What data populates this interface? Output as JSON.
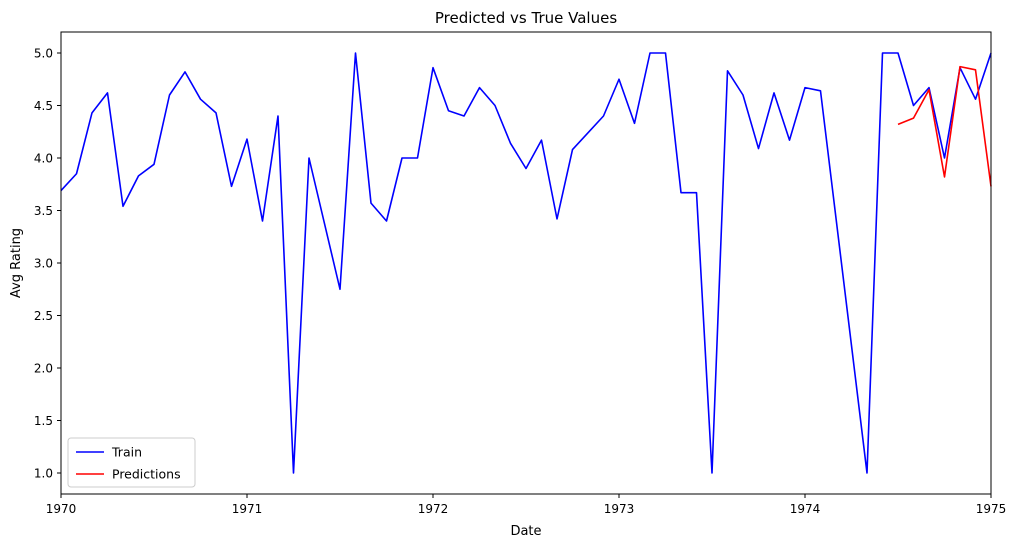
{
  "chart_data": {
    "type": "line",
    "title": "Predicted vs True Values",
    "xlabel": "Date",
    "ylabel": "Avg Rating",
    "xlim": [
      "1970-01",
      "1975-01"
    ],
    "ylim": [
      0.8,
      5.2
    ],
    "grid": false,
    "legend_position": "lower-left",
    "x_ticks": [
      "1970",
      "1971",
      "1972",
      "1973",
      "1974",
      "1975"
    ],
    "y_ticks": [
      "1.0",
      "1.5",
      "2.0",
      "2.5",
      "3.0",
      "3.5",
      "4.0",
      "4.5",
      "5.0"
    ],
    "series": [
      {
        "name": "Train",
        "color": "#0000ff",
        "x": [
          "1970-01",
          "1970-02",
          "1970-03",
          "1970-04",
          "1970-05",
          "1970-06",
          "1970-07",
          "1970-08",
          "1970-09",
          "1970-10",
          "1970-11",
          "1970-12",
          "1971-01",
          "1971-02",
          "1971-03",
          "1971-04",
          "1971-05",
          "1971-07",
          "1971-08",
          "1971-09",
          "1971-10",
          "1971-11",
          "1971-12",
          "1972-01",
          "1972-02",
          "1972-03",
          "1972-04",
          "1972-05",
          "1972-06",
          "1972-07",
          "1972-08",
          "1972-09",
          "1972-10",
          "1972-12",
          "1973-01",
          "1973-02",
          "1973-03",
          "1973-04",
          "1973-05",
          "1973-06",
          "1973-07",
          "1973-08",
          "1973-09",
          "1973-10",
          "1973-11",
          "1973-12",
          "1974-01",
          "1974-02",
          "1974-05",
          "1974-06",
          "1974-07",
          "1974-08",
          "1974-09",
          "1974-10",
          "1974-11",
          "1974-12",
          "1975-01"
        ],
        "values": [
          3.69,
          3.85,
          4.43,
          4.62,
          3.54,
          3.83,
          3.94,
          4.6,
          4.82,
          4.56,
          4.43,
          3.73,
          4.18,
          3.4,
          4.4,
          1.0,
          4.0,
          2.75,
          5.0,
          3.57,
          3.4,
          4.0,
          4.0,
          4.86,
          4.45,
          4.4,
          4.67,
          4.5,
          4.14,
          3.9,
          4.17,
          3.42,
          4.08,
          4.4,
          4.75,
          4.33,
          5.0,
          5.0,
          3.67,
          3.67,
          1.0,
          4.83,
          4.6,
          4.09,
          4.62,
          4.17,
          4.67,
          4.64,
          1.0,
          5.0,
          5.0,
          4.5,
          4.67,
          4.0,
          4.86,
          4.56,
          5.0
        ]
      },
      {
        "name": "Predictions",
        "color": "#ff0000",
        "x": [
          "1974-07",
          "1974-08",
          "1974-09",
          "1974-10",
          "1974-11",
          "1974-12",
          "1975-01"
        ],
        "values": [
          4.32,
          4.38,
          4.65,
          3.82,
          4.87,
          4.84,
          3.73
        ]
      }
    ]
  }
}
